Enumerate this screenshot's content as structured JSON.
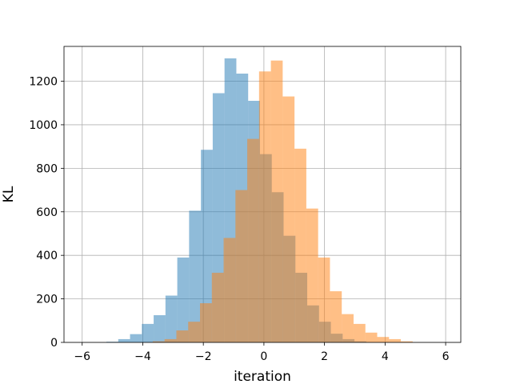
{
  "chart_data": {
    "type": "bar",
    "subtype": "overlaid-histogram",
    "xlabel": "iteration",
    "ylabel": "KL",
    "xlim": [
      -6.6,
      6.5
    ],
    "ylim": [
      0,
      1360
    ],
    "xticks": [
      -6,
      -4,
      -2,
      0,
      2,
      4,
      6
    ],
    "yticks": [
      0,
      200,
      400,
      600,
      800,
      1000,
      1200
    ],
    "grid": true,
    "series": [
      {
        "color": "#1f77b4",
        "opacity": 0.5,
        "bins": [
          {
            "x0": -5.2,
            "x1": -4.81,
            "value": 3
          },
          {
            "x0": -4.81,
            "x1": -4.42,
            "value": 15
          },
          {
            "x0": -4.42,
            "x1": -4.03,
            "value": 38
          },
          {
            "x0": -4.03,
            "x1": -3.64,
            "value": 85
          },
          {
            "x0": -3.64,
            "x1": -3.25,
            "value": 125
          },
          {
            "x0": -3.25,
            "x1": -2.86,
            "value": 215
          },
          {
            "x0": -2.86,
            "x1": -2.47,
            "value": 390
          },
          {
            "x0": -2.47,
            "x1": -2.08,
            "value": 605
          },
          {
            "x0": -2.08,
            "x1": -1.69,
            "value": 885
          },
          {
            "x0": -1.69,
            "x1": -1.3,
            "value": 1145
          },
          {
            "x0": -1.3,
            "x1": -0.91,
            "value": 1305
          },
          {
            "x0": -0.91,
            "x1": -0.52,
            "value": 1235
          },
          {
            "x0": -0.52,
            "x1": -0.13,
            "value": 1110
          },
          {
            "x0": -0.13,
            "x1": 0.26,
            "value": 865
          },
          {
            "x0": 0.26,
            "x1": 0.65,
            "value": 690
          },
          {
            "x0": 0.65,
            "x1": 1.04,
            "value": 490
          },
          {
            "x0": 1.04,
            "x1": 1.43,
            "value": 320
          },
          {
            "x0": 1.43,
            "x1": 1.82,
            "value": 170
          },
          {
            "x0": 1.82,
            "x1": 2.21,
            "value": 95
          },
          {
            "x0": 2.21,
            "x1": 2.6,
            "value": 40
          },
          {
            "x0": 2.6,
            "x1": 2.99,
            "value": 15
          },
          {
            "x0": 2.99,
            "x1": 3.38,
            "value": 5
          }
        ]
      },
      {
        "color": "#ff7f0e",
        "opacity": 0.5,
        "bins": [
          {
            "x0": -3.67,
            "x1": -3.28,
            "value": 5
          },
          {
            "x0": -3.28,
            "x1": -2.89,
            "value": 15
          },
          {
            "x0": -2.89,
            "x1": -2.5,
            "value": 55
          },
          {
            "x0": -2.5,
            "x1": -2.11,
            "value": 95
          },
          {
            "x0": -2.11,
            "x1": -1.72,
            "value": 180
          },
          {
            "x0": -1.72,
            "x1": -1.33,
            "value": 320
          },
          {
            "x0": -1.33,
            "x1": -0.94,
            "value": 480
          },
          {
            "x0": -0.94,
            "x1": -0.55,
            "value": 700
          },
          {
            "x0": -0.55,
            "x1": -0.16,
            "value": 935
          },
          {
            "x0": -0.16,
            "x1": 0.23,
            "value": 1245
          },
          {
            "x0": 0.23,
            "x1": 0.62,
            "value": 1295
          },
          {
            "x0": 0.62,
            "x1": 1.01,
            "value": 1130
          },
          {
            "x0": 1.01,
            "x1": 1.4,
            "value": 890
          },
          {
            "x0": 1.4,
            "x1": 1.79,
            "value": 615
          },
          {
            "x0": 1.79,
            "x1": 2.18,
            "value": 390
          },
          {
            "x0": 2.18,
            "x1": 2.57,
            "value": 235
          },
          {
            "x0": 2.57,
            "x1": 2.96,
            "value": 130
          },
          {
            "x0": 2.96,
            "x1": 3.35,
            "value": 85
          },
          {
            "x0": 3.35,
            "x1": 3.74,
            "value": 45
          },
          {
            "x0": 3.74,
            "x1": 4.13,
            "value": 25
          },
          {
            "x0": 4.13,
            "x1": 4.52,
            "value": 15
          },
          {
            "x0": 4.52,
            "x1": 4.91,
            "value": 5
          }
        ]
      }
    ]
  }
}
